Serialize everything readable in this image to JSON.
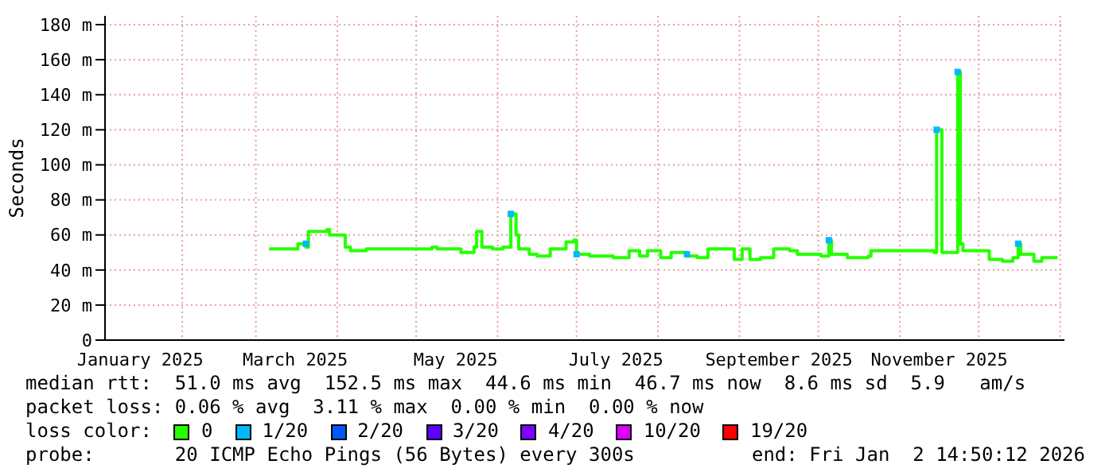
{
  "chart_data": {
    "type": "step",
    "ylabel": "Seconds",
    "xlim": [
      "2025-01-02T14:50",
      "2026-01-02T14:50"
    ],
    "xticks": [
      {
        "value": "2025-01-16",
        "label": "January 2025"
      },
      {
        "value": "2025-03-16",
        "label": "March 2025"
      },
      {
        "value": "2025-05-16",
        "label": "May 2025"
      },
      {
        "value": "2025-07-16",
        "label": "July 2025"
      },
      {
        "value": "2025-09-16",
        "label": "September 2025"
      },
      {
        "value": "2025-11-16",
        "label": "November 2025"
      }
    ],
    "ylim": [
      0,
      185
    ],
    "yticks": [
      0,
      {
        "value": 20,
        "label": "20 m"
      },
      {
        "value": 40,
        "label": "40 m"
      },
      {
        "value": 60,
        "label": "60 m"
      },
      {
        "value": 80,
        "label": "80 m"
      },
      {
        "value": 100,
        "label": "100 m"
      },
      {
        "value": 120,
        "label": "120 m"
      },
      {
        "value": 140,
        "label": "140 m"
      },
      {
        "value": 160,
        "label": "160 m"
      },
      {
        "value": 180,
        "label": "180 m"
      }
    ],
    "grid": true,
    "legend": "bottom",
    "legend_title": "loss color:",
    "series": [
      {
        "name": "0",
        "color": "#26ff00",
        "x": [
          "2025-03-06",
          "2025-03-16",
          "2025-03-17",
          "2025-03-20",
          "2025-03-21",
          "2025-03-28",
          "2025-03-29",
          "2025-04-03",
          "2025-04-04",
          "2025-04-06",
          "2025-04-12",
          "2025-05-07",
          "2025-05-09",
          "2025-05-18",
          "2025-05-23",
          "2025-05-24",
          "2025-05-26",
          "2025-05-30",
          "2025-06-03",
          "2025-06-06",
          "2025-06-08",
          "2025-06-09",
          "2025-06-13",
          "2025-06-16",
          "2025-06-21",
          "2025-06-27",
          "2025-06-30",
          "2025-07-01",
          "2025-07-06",
          "2025-07-15",
          "2025-07-21",
          "2025-07-25",
          "2025-07-28",
          "2025-08-02",
          "2025-08-06",
          "2025-08-12",
          "2025-08-16",
          "2025-08-20",
          "2025-08-26",
          "2025-08-30",
          "2025-09-02",
          "2025-09-05",
          "2025-09-09",
          "2025-09-14",
          "2025-09-20",
          "2025-09-23",
          "2025-10-02",
          "2025-10-05",
          "2025-10-06",
          "2025-10-12",
          "2025-10-20",
          "2025-10-21",
          "2025-11-05",
          "2025-11-14",
          "2025-11-15",
          "2025-11-17",
          "2025-11-21",
          "2025-11-23",
          "2025-11-24",
          "2025-11-25",
          "2025-12-02",
          "2025-12-05",
          "2025-12-10",
          "2025-12-14",
          "2025-12-16",
          "2025-12-17",
          "2025-12-22",
          "2025-12-25",
          "2025-12-31"
        ],
        "values": [
          52,
          52,
          55,
          53,
          62,
          63,
          60,
          60,
          53,
          51,
          52,
          53,
          52,
          50,
          53,
          62,
          53,
          52,
          53,
          72,
          60,
          52,
          49,
          48,
          52,
          56,
          57,
          49,
          48,
          47,
          51,
          48,
          51,
          47,
          50,
          48,
          47,
          52,
          52,
          46,
          52,
          46,
          47,
          52,
          51,
          49,
          48,
          57,
          49,
          47,
          48,
          51,
          51,
          50,
          120,
          50,
          50,
          153,
          55,
          51,
          51,
          46,
          45,
          47,
          55,
          49,
          45,
          47,
          47
        ]
      },
      {
        "name": "1/20",
        "color": "#00b8ff",
        "type": "scatter",
        "marker": "square",
        "x": [
          "2025-03-20",
          "2025-06-06",
          "2025-07-01",
          "2025-08-12",
          "2025-10-05",
          "2025-11-15",
          "2025-11-23",
          "2025-12-16"
        ],
        "values": [
          55,
          72,
          49,
          49,
          57,
          120,
          153,
          55
        ]
      },
      {
        "name": "2/20",
        "color": "#0059ff"
      },
      {
        "name": "3/20",
        "color": "#5e00ff"
      },
      {
        "name": "4/20",
        "color": "#7e00ff"
      },
      {
        "name": "10/20",
        "color": "#dd00ff"
      },
      {
        "name": "19/20",
        "color": "#ff0000"
      }
    ],
    "annotations": [
      "median rtt:  51.0 ms avg  152.5 ms max  44.6 ms min  46.7 ms now  8.6 ms sd  5.9   am/s",
      "packet loss: 0.06 % avg  3.11 % max  0.00 % min  0.00 % now",
      "probe:       20 ICMP Echo Pings (56 Bytes) every 300s",
      "end: Fri Jan  2 14:50:12 2026"
    ]
  }
}
